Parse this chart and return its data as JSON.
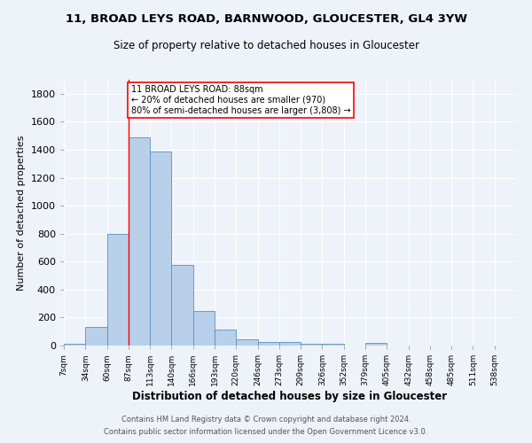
{
  "title": "11, BROAD LEYS ROAD, BARNWOOD, GLOUCESTER, GL4 3YW",
  "subtitle": "Size of property relative to detached houses in Gloucester",
  "xlabel": "Distribution of detached houses by size in Gloucester",
  "ylabel": "Number of detached properties",
  "bar_labels": [
    "7sqm",
    "34sqm",
    "60sqm",
    "87sqm",
    "113sqm",
    "140sqm",
    "166sqm",
    "193sqm",
    "220sqm",
    "246sqm",
    "273sqm",
    "299sqm",
    "326sqm",
    "352sqm",
    "379sqm",
    "405sqm",
    "432sqm",
    "458sqm",
    "485sqm",
    "511sqm",
    "538sqm"
  ],
  "bar_values": [
    15,
    135,
    795,
    1490,
    1385,
    575,
    248,
    115,
    42,
    27,
    27,
    15,
    15,
    0,
    20,
    0,
    0,
    0,
    0,
    0,
    0
  ],
  "bar_color": "#b8d0ea",
  "bar_edgecolor": "#5a8fc2",
  "property_line_x": 88,
  "property_line_color": "red",
  "annotation_text": "11 BROAD LEYS ROAD: 88sqm\n← 20% of detached houses are smaller (970)\n80% of semi-detached houses are larger (3,808) →",
  "annotation_box_color": "white",
  "annotation_box_edgecolor": "red",
  "ylim": [
    0,
    1900
  ],
  "background_color": "#eef2f9",
  "grid_color": "white",
  "footer_line1": "Contains HM Land Registry data © Crown copyright and database right 2024.",
  "footer_line2": "Contains public sector information licensed under the Open Government Licence v3.0.",
  "bin_width": 27
}
